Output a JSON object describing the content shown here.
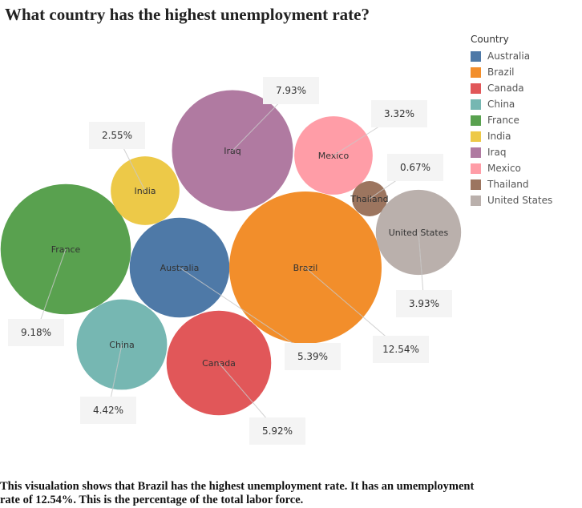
{
  "chart_data": {
    "type": "bubble",
    "title": "What country has the highest unemployment rate?",
    "legend_title": "Country",
    "items": [
      {
        "country": "Australia",
        "value": 5.39,
        "label": "5.39%",
        "color": "#4e79a7"
      },
      {
        "country": "Brazil",
        "value": 12.54,
        "label": "12.54%",
        "color": "#f28e2b"
      },
      {
        "country": "Canada",
        "value": 5.92,
        "label": "5.92%",
        "color": "#e15759"
      },
      {
        "country": "China",
        "value": 4.42,
        "label": "4.42%",
        "color": "#76b7b2"
      },
      {
        "country": "France",
        "value": 9.18,
        "label": "9.18%",
        "color": "#59a14f"
      },
      {
        "country": "India",
        "value": 2.55,
        "label": "2.55%",
        "color": "#edc948"
      },
      {
        "country": "Iraq",
        "value": 7.93,
        "label": "7.93%",
        "color": "#b07aa1"
      },
      {
        "country": "Mexico",
        "value": 3.32,
        "label": "3.32%",
        "color": "#ff9da7"
      },
      {
        "country": "Thailand",
        "value": 0.67,
        "label": "0.67%",
        "color": "#9c755f"
      },
      {
        "country": "United States",
        "value": 3.93,
        "label": "3.93%",
        "color": "#bab0ac"
      }
    ]
  },
  "caption": "This visualation shows that Brazil has the highest unemployment rate. It has an umemployment rate of 12.54%. This is the percentage of the total labor force."
}
